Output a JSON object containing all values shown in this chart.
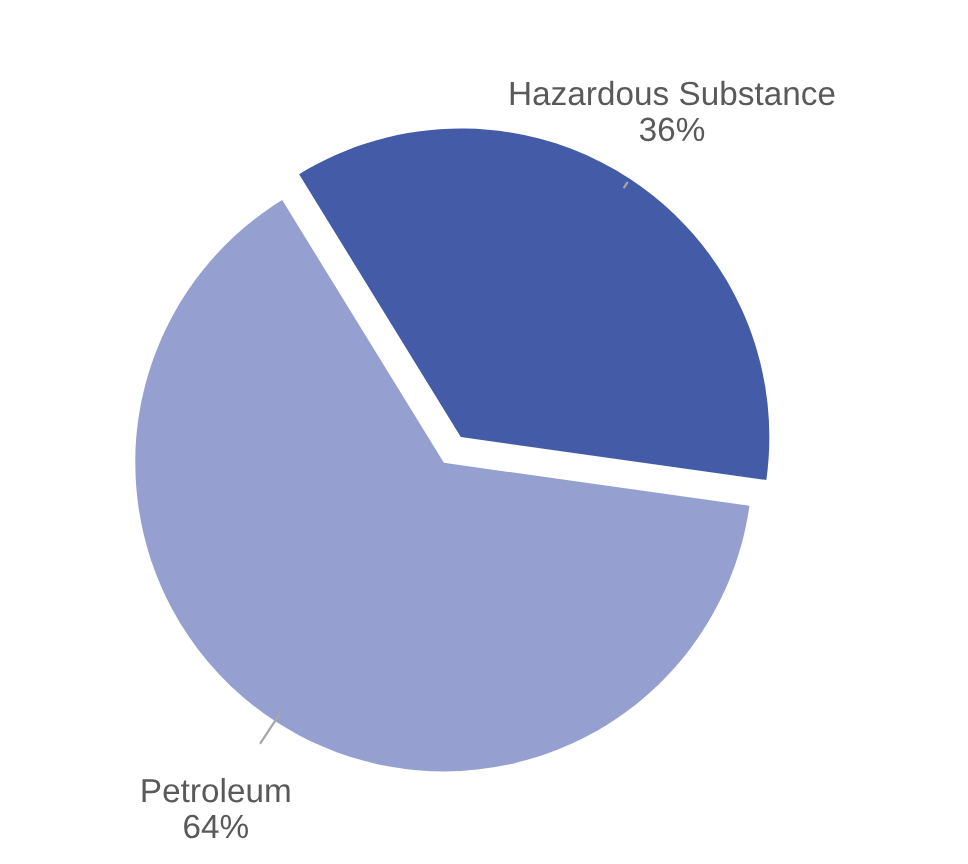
{
  "chart_data": {
    "type": "pie",
    "categories": [
      "Hazardous Substance",
      "Petroleum"
    ],
    "values": [
      36,
      64
    ],
    "colors": [
      "#445ca8",
      "#95a0d0"
    ],
    "value_labels": [
      "36%",
      "64%"
    ]
  }
}
